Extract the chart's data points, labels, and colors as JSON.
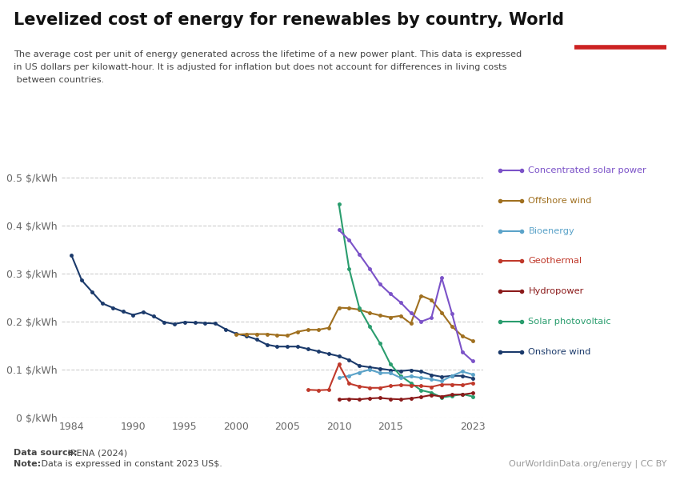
{
  "title": "Levelized cost of energy for renewables by country, World",
  "subtitle_line1": "The average cost per unit of energy generated across the lifetime of a new power plant. This data is expressed",
  "subtitle_line2": "in US dollars per kilowatt-hour. It is adjusted for inflation but does not account for differences in living costs",
  "subtitle_line3": " between countries.",
  "datasource_bold": "Data source:",
  "datasource_normal": " IRENA (2024)",
  "note_bold": "Note:",
  "note_normal": " Data is expressed in constant 2023 US$.",
  "watermark": "OurWorldinData.org/energy | CC BY",
  "series": {
    "Onshore wind": {
      "color": "#1b3a6b",
      "years": [
        1984,
        1985,
        1986,
        1987,
        1988,
        1989,
        1990,
        1991,
        1992,
        1993,
        1994,
        1995,
        1996,
        1997,
        1998,
        1999,
        2000,
        2001,
        2002,
        2003,
        2004,
        2005,
        2006,
        2007,
        2008,
        2009,
        2010,
        2011,
        2012,
        2013,
        2014,
        2015,
        2016,
        2017,
        2018,
        2019,
        2020,
        2021,
        2022,
        2023
      ],
      "values": [
        0.338,
        0.286,
        0.262,
        0.238,
        0.229,
        0.221,
        0.214,
        0.22,
        0.211,
        0.199,
        0.195,
        0.199,
        0.198,
        0.197,
        0.196,
        0.184,
        0.175,
        0.17,
        0.163,
        0.152,
        0.148,
        0.148,
        0.148,
        0.143,
        0.138,
        0.133,
        0.128,
        0.12,
        0.108,
        0.105,
        0.102,
        0.099,
        0.097,
        0.099,
        0.096,
        0.089,
        0.085,
        0.087,
        0.087,
        0.082
      ]
    },
    "Offshore wind": {
      "color": "#a07020",
      "years": [
        2000,
        2001,
        2002,
        2003,
        2004,
        2005,
        2006,
        2007,
        2008,
        2009,
        2010,
        2011,
        2012,
        2013,
        2014,
        2015,
        2016,
        2017,
        2018,
        2019,
        2020,
        2021,
        2022,
        2023
      ],
      "values": [
        0.173,
        0.174,
        0.174,
        0.174,
        0.172,
        0.171,
        0.179,
        0.183,
        0.183,
        0.187,
        0.229,
        0.228,
        0.225,
        0.218,
        0.213,
        0.209,
        0.212,
        0.196,
        0.254,
        0.245,
        0.219,
        0.19,
        0.17,
        0.16
      ]
    },
    "Solar photovoltaic": {
      "color": "#2a9d6e",
      "years": [
        2010,
        2011,
        2012,
        2013,
        2014,
        2015,
        2016,
        2017,
        2018,
        2019,
        2020,
        2021,
        2022,
        2023
      ],
      "values": [
        0.445,
        0.31,
        0.228,
        0.19,
        0.155,
        0.112,
        0.087,
        0.072,
        0.057,
        0.052,
        0.042,
        0.045,
        0.049,
        0.044
      ]
    },
    "Concentrated solar power": {
      "color": "#7b52c8",
      "years": [
        2010,
        2011,
        2012,
        2013,
        2014,
        2015,
        2016,
        2017,
        2018,
        2019,
        2020,
        2021,
        2022,
        2023
      ],
      "values": [
        0.391,
        0.37,
        0.34,
        0.31,
        0.278,
        0.258,
        0.24,
        0.218,
        0.2,
        0.208,
        0.291,
        0.217,
        0.137,
        0.118
      ]
    },
    "Bioenergy": {
      "color": "#5ba3c9",
      "years": [
        2010,
        2011,
        2012,
        2013,
        2014,
        2015,
        2016,
        2017,
        2018,
        2019,
        2020,
        2021,
        2022,
        2023
      ],
      "values": [
        0.083,
        0.087,
        0.094,
        0.1,
        0.093,
        0.093,
        0.083,
        0.086,
        0.083,
        0.08,
        0.076,
        0.087,
        0.096,
        0.09
      ]
    },
    "Geothermal": {
      "color": "#c0392b",
      "years": [
        2007,
        2008,
        2009,
        2010,
        2011,
        2012,
        2013,
        2014,
        2015,
        2016,
        2017,
        2018,
        2019,
        2020,
        2021,
        2022,
        2023
      ],
      "values": [
        0.058,
        0.057,
        0.058,
        0.111,
        0.071,
        0.065,
        0.062,
        0.062,
        0.066,
        0.068,
        0.067,
        0.066,
        0.064,
        0.069,
        0.069,
        0.068,
        0.072
      ]
    },
    "Hydropower": {
      "color": "#8b1a1a",
      "years": [
        2010,
        2011,
        2012,
        2013,
        2014,
        2015,
        2016,
        2017,
        2018,
        2019,
        2020,
        2021,
        2022,
        2023
      ],
      "values": [
        0.038,
        0.039,
        0.038,
        0.04,
        0.041,
        0.039,
        0.038,
        0.04,
        0.043,
        0.047,
        0.044,
        0.048,
        0.048,
        0.051
      ]
    }
  },
  "ylim": [
    0,
    0.52
  ],
  "yticks": [
    0,
    0.1,
    0.2,
    0.3,
    0.4,
    0.5
  ],
  "ytick_labels": [
    "0 $/kWh",
    "0.1 $/kWh",
    "0.2 $/kWh",
    "0.3 $/kWh",
    "0.4 $/kWh",
    "0.5 $/kWh"
  ],
  "xlim": [
    1983,
    2024
  ],
  "xticks": [
    1984,
    1990,
    1995,
    2000,
    2005,
    2010,
    2015,
    2023
  ],
  "background_color": "#ffffff",
  "legend_order": [
    "Concentrated solar power",
    "Offshore wind",
    "Bioenergy",
    "Geothermal",
    "Hydropower",
    "Solar photovoltaic",
    "Onshore wind"
  ]
}
